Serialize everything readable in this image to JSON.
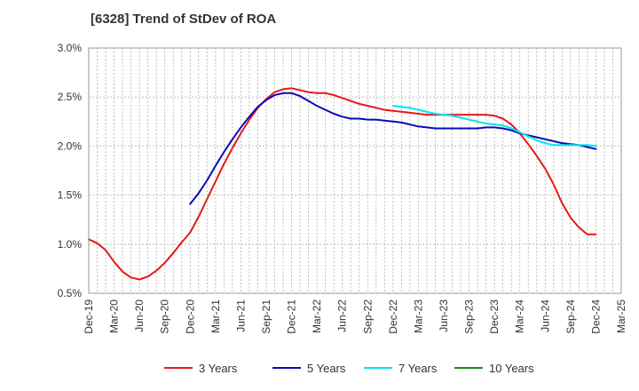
{
  "chart_data": {
    "type": "line",
    "title": "[6328]  Trend of StDev of ROA",
    "xlabel": "",
    "ylabel": "",
    "ylim": [
      0.5,
      3.0
    ],
    "yticks": [
      "0.5%",
      "1.0%",
      "1.5%",
      "2.0%",
      "2.5%",
      "3.0%"
    ],
    "x_tick_labels": [
      "Dec-19",
      "Mar-20",
      "Jun-20",
      "Sep-20",
      "Dec-20",
      "Mar-21",
      "Jun-21",
      "Sep-21",
      "Dec-21",
      "Mar-22",
      "Jun-22",
      "Sep-22",
      "Dec-22",
      "Mar-23",
      "Jun-23",
      "Sep-23",
      "Dec-23",
      "Mar-24",
      "Jun-24",
      "Sep-24",
      "Dec-24",
      "Mar-25"
    ],
    "grid": true,
    "legend_position": "bottom",
    "series": [
      {
        "name": "3 Years",
        "color": "#e31a1c",
        "x": [
          "Dec-19",
          "Jan-20",
          "Feb-20",
          "Mar-20",
          "Apr-20",
          "May-20",
          "Jun-20",
          "Jul-20",
          "Aug-20",
          "Sep-20",
          "Oct-20",
          "Nov-20",
          "Dec-20",
          "Jan-21",
          "Feb-21",
          "Mar-21",
          "Apr-21",
          "May-21",
          "Jun-21",
          "Jul-21",
          "Aug-21",
          "Sep-21",
          "Oct-21",
          "Nov-21",
          "Dec-21",
          "Jan-22",
          "Feb-22",
          "Mar-22",
          "Apr-22",
          "May-22",
          "Jun-22",
          "Jul-22",
          "Aug-22",
          "Sep-22",
          "Oct-22",
          "Nov-22",
          "Dec-22",
          "Jan-23",
          "Feb-23",
          "Mar-23",
          "Apr-23",
          "May-23",
          "Jun-23",
          "Jul-23",
          "Aug-23",
          "Sep-23",
          "Oct-23",
          "Nov-23",
          "Dec-23",
          "Jan-24",
          "Feb-24",
          "Mar-24",
          "Apr-24",
          "May-24",
          "Jun-24",
          "Jul-24",
          "Aug-24",
          "Sep-24",
          "Oct-24",
          "Nov-24",
          "Dec-24"
        ],
        "values": [
          1.05,
          1.01,
          0.94,
          0.82,
          0.72,
          0.66,
          0.64,
          0.67,
          0.73,
          0.81,
          0.91,
          1.02,
          1.12,
          1.28,
          1.46,
          1.64,
          1.82,
          1.98,
          2.13,
          2.27,
          2.39,
          2.48,
          2.55,
          2.58,
          2.59,
          2.57,
          2.55,
          2.54,
          2.54,
          2.52,
          2.49,
          2.46,
          2.43,
          2.41,
          2.39,
          2.37,
          2.36,
          2.35,
          2.34,
          2.33,
          2.32,
          2.32,
          2.32,
          2.32,
          2.32,
          2.32,
          2.32,
          2.32,
          2.31,
          2.28,
          2.22,
          2.13,
          2.02,
          1.9,
          1.77,
          1.61,
          1.42,
          1.27,
          1.17,
          1.1,
          1.1
        ]
      },
      {
        "name": "5 Years",
        "color": "#0b0bb5",
        "x": [
          "Dec-20",
          "Jan-21",
          "Feb-21",
          "Mar-21",
          "Apr-21",
          "May-21",
          "Jun-21",
          "Jul-21",
          "Aug-21",
          "Sep-21",
          "Oct-21",
          "Nov-21",
          "Dec-21",
          "Jan-22",
          "Feb-22",
          "Mar-22",
          "Apr-22",
          "May-22",
          "Jun-22",
          "Jul-22",
          "Aug-22",
          "Sep-22",
          "Oct-22",
          "Nov-22",
          "Dec-22",
          "Jan-23",
          "Feb-23",
          "Mar-23",
          "Apr-23",
          "May-23",
          "Jun-23",
          "Jul-23",
          "Aug-23",
          "Sep-23",
          "Oct-23",
          "Nov-23",
          "Dec-23",
          "Jan-24",
          "Feb-24",
          "Mar-24",
          "Apr-24",
          "May-24",
          "Jun-24",
          "Jul-24",
          "Aug-24",
          "Sep-24",
          "Oct-24",
          "Nov-24",
          "Dec-24"
        ],
        "values": [
          1.41,
          1.52,
          1.65,
          1.8,
          1.94,
          2.07,
          2.19,
          2.3,
          2.4,
          2.47,
          2.52,
          2.54,
          2.54,
          2.51,
          2.46,
          2.41,
          2.37,
          2.33,
          2.3,
          2.28,
          2.28,
          2.27,
          2.27,
          2.26,
          2.25,
          2.24,
          2.22,
          2.2,
          2.19,
          2.18,
          2.18,
          2.18,
          2.18,
          2.18,
          2.18,
          2.19,
          2.19,
          2.18,
          2.16,
          2.13,
          2.11,
          2.09,
          2.07,
          2.05,
          2.03,
          2.02,
          2.01,
          1.99,
          1.97
        ]
      },
      {
        "name": "7 Years",
        "color": "#00e5ee",
        "x": [
          "Dec-22",
          "Jan-23",
          "Feb-23",
          "Mar-23",
          "Apr-23",
          "May-23",
          "Jun-23",
          "Jul-23",
          "Aug-23",
          "Sep-23",
          "Oct-23",
          "Nov-23",
          "Dec-23",
          "Jan-24",
          "Feb-24",
          "Mar-24",
          "Apr-24",
          "May-24",
          "Jun-24",
          "Jul-24",
          "Aug-24",
          "Sep-24",
          "Oct-24",
          "Nov-24",
          "Dec-24"
        ],
        "values": [
          2.41,
          2.4,
          2.39,
          2.37,
          2.35,
          2.33,
          2.32,
          2.31,
          2.29,
          2.27,
          2.25,
          2.23,
          2.22,
          2.21,
          2.18,
          2.14,
          2.1,
          2.06,
          2.03,
          2.01,
          2.01,
          2.01,
          2.01,
          2.01,
          2.0
        ]
      },
      {
        "name": "10 Years",
        "color": "#1a8a1a",
        "x": [],
        "values": []
      }
    ]
  }
}
